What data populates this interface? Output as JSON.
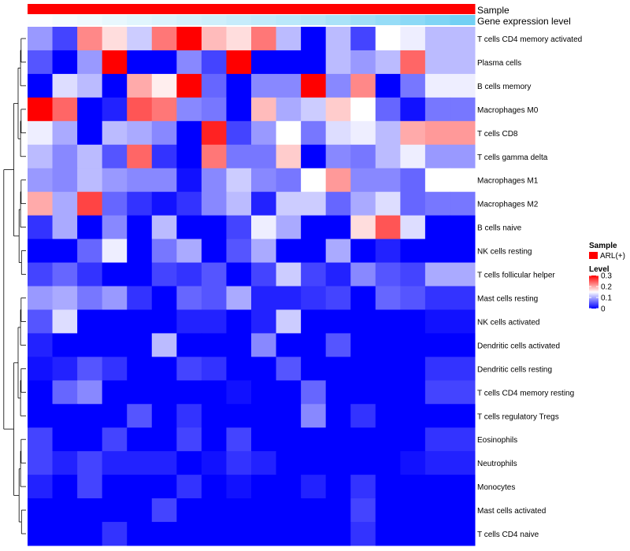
{
  "chart_data": {
    "type": "heatmap",
    "annotation_rows": [
      {
        "label": "Sample",
        "values": [
          "ARL(+)",
          "ARL(+)",
          "ARL(+)",
          "ARL(+)",
          "ARL(+)",
          "ARL(+)",
          "ARL(+)",
          "ARL(+)",
          "ARL(+)",
          "ARL(+)",
          "ARL(+)",
          "ARL(+)",
          "ARL(+)",
          "ARL(+)",
          "ARL(+)",
          "ARL(+)",
          "ARL(+)",
          "ARL(+)"
        ],
        "color": "#FF0000"
      },
      {
        "label": "Gene expression level",
        "values": [
          0.02,
          0.06,
          0.1,
          0.14,
          0.18,
          0.22,
          0.26,
          0.3,
          0.34,
          0.38,
          0.42,
          0.46,
          0.52,
          0.58,
          0.64,
          0.7,
          0.78,
          0.86
        ]
      }
    ],
    "rows": [
      "T cells CD4 memory activated",
      "Plasma cells",
      "B cells memory",
      "Macrophages M0",
      "T cells CD8",
      "T cells gamma delta",
      "Macrophages M1",
      "Macrophages M2",
      "B cells naive",
      "NK cells resting",
      "T cells follicular helper",
      "Mast cells resting",
      "NK cells activated",
      "Dendritic cells activated",
      "Dendritic cells resting",
      "T cells CD4 memory resting",
      "T cells regulatory  Tregs",
      "Eosinophils",
      "Neutrophils",
      "Monocytes",
      "Mast cells activated",
      "T cells CD4 naive"
    ],
    "values": [
      [
        0.09,
        0.04,
        0.22,
        0.17,
        0.12,
        0.23,
        0.3,
        0.19,
        0.17,
        0.23,
        0.11,
        0.0,
        0.11,
        0.04,
        0.15,
        0.14,
        0.11,
        0.11
      ],
      [
        0.05,
        0.0,
        0.09,
        0.3,
        0.0,
        0.0,
        0.08,
        0.04,
        0.3,
        0.0,
        0.0,
        0.0,
        0.11,
        0.09,
        0.11,
        0.24,
        0.11,
        0.11
      ],
      [
        0.0,
        0.13,
        0.11,
        0.0,
        0.2,
        0.16,
        0.3,
        0.06,
        0.0,
        0.08,
        0.08,
        0.3,
        0.08,
        0.22,
        0.0,
        0.07,
        0.14,
        0.14
      ],
      [
        0.3,
        0.24,
        0.0,
        0.02,
        0.25,
        0.23,
        0.08,
        0.07,
        0.0,
        0.19,
        0.1,
        0.12,
        0.18,
        0.15,
        0.06,
        0.01,
        0.07,
        0.07
      ],
      [
        0.14,
        0.1,
        0.0,
        0.11,
        0.1,
        0.08,
        0.0,
        0.28,
        0.04,
        0.09,
        0.15,
        0.07,
        0.13,
        0.14,
        0.11,
        0.2,
        0.21,
        0.21
      ],
      [
        0.11,
        0.08,
        0.11,
        0.05,
        0.24,
        0.03,
        0.0,
        0.23,
        0.07,
        0.07,
        0.18,
        0.0,
        0.08,
        0.07,
        0.11,
        0.14,
        0.09,
        0.09
      ],
      [
        0.09,
        0.08,
        0.11,
        0.09,
        0.08,
        0.08,
        0.01,
        0.08,
        0.12,
        0.08,
        0.07,
        0.15,
        0.21,
        0.08,
        0.08,
        0.06,
        0.15,
        0.15
      ],
      [
        0.2,
        0.1,
        0.26,
        0.06,
        0.03,
        0.01,
        0.03,
        0.08,
        0.11,
        0.02,
        0.12,
        0.12,
        0.06,
        0.1,
        0.13,
        0.06,
        0.07,
        0.07
      ],
      [
        0.03,
        0.1,
        0.0,
        0.08,
        0.0,
        0.11,
        0.0,
        0.0,
        0.04,
        0.14,
        0.1,
        0.0,
        0.0,
        0.17,
        0.25,
        0.13,
        0.0,
        0.0
      ],
      [
        0.0,
        0.0,
        0.06,
        0.14,
        0.0,
        0.07,
        0.1,
        0.0,
        0.05,
        0.1,
        0.0,
        0.0,
        0.1,
        0.0,
        0.02,
        0.0,
        0.0,
        0.0
      ],
      [
        0.04,
        0.06,
        0.03,
        0.0,
        0.0,
        0.04,
        0.03,
        0.05,
        0.0,
        0.04,
        0.12,
        0.04,
        0.02,
        0.08,
        0.05,
        0.04,
        0.1,
        0.1
      ],
      [
        0.09,
        0.1,
        0.07,
        0.09,
        0.03,
        0.0,
        0.06,
        0.05,
        0.1,
        0.02,
        0.02,
        0.03,
        0.04,
        0.0,
        0.06,
        0.05,
        0.03,
        0.03
      ],
      [
        0.05,
        0.13,
        0.0,
        0.0,
        0.0,
        0.0,
        0.02,
        0.02,
        0.0,
        0.02,
        0.12,
        0.0,
        0.0,
        0.0,
        0.0,
        0.0,
        0.01,
        0.01
      ],
      [
        0.02,
        0.0,
        0.0,
        0.0,
        0.0,
        0.11,
        0.0,
        0.0,
        0.0,
        0.08,
        0.0,
        0.0,
        0.05,
        0.0,
        0.0,
        0.0,
        0.0,
        0.0
      ],
      [
        0.01,
        0.02,
        0.05,
        0.03,
        0.0,
        0.0,
        0.04,
        0.03,
        0.0,
        0.0,
        0.05,
        0.0,
        0.0,
        0.0,
        0.0,
        0.0,
        0.03,
        0.03
      ],
      [
        0.0,
        0.06,
        0.08,
        0.0,
        0.0,
        0.0,
        0.0,
        0.0,
        0.01,
        0.0,
        0.0,
        0.06,
        0.0,
        0.0,
        0.0,
        0.0,
        0.04,
        0.04
      ],
      [
        0.0,
        0.0,
        0.0,
        0.0,
        0.05,
        0.0,
        0.03,
        0.0,
        0.0,
        0.0,
        0.0,
        0.08,
        0.0,
        0.03,
        0.0,
        0.0,
        0.0,
        0.0
      ],
      [
        0.04,
        0.0,
        0.0,
        0.04,
        0.0,
        0.0,
        0.04,
        0.0,
        0.04,
        0.0,
        0.0,
        0.0,
        0.0,
        0.0,
        0.0,
        0.0,
        0.03,
        0.03
      ],
      [
        0.04,
        0.02,
        0.04,
        0.02,
        0.02,
        0.02,
        0.0,
        0.01,
        0.03,
        0.02,
        0.0,
        0.0,
        0.0,
        0.0,
        0.0,
        0.01,
        0.02,
        0.02
      ],
      [
        0.02,
        0.0,
        0.04,
        0.0,
        0.0,
        0.0,
        0.03,
        0.0,
        0.01,
        0.0,
        0.0,
        0.02,
        0.0,
        0.03,
        0.0,
        0.0,
        0.0,
        0.0
      ],
      [
        0.0,
        0.0,
        0.0,
        0.0,
        0.0,
        0.04,
        0.0,
        0.0,
        0.0,
        0.0,
        0.0,
        0.0,
        0.0,
        0.04,
        0.0,
        0.0,
        0.0,
        0.0
      ],
      [
        0.0,
        0.0,
        0.0,
        0.03,
        0.0,
        0.0,
        0.0,
        0.0,
        0.0,
        0.0,
        0.0,
        0.0,
        0.0,
        0.03,
        0.0,
        0.0,
        0.0,
        0.0
      ]
    ],
    "scale": {
      "min": 0,
      "max": 0.3,
      "low": "#0000FF",
      "mid": "#FFFFFF",
      "high": "#FF0000",
      "mid_value": 0.15
    },
    "legend": {
      "sample_title": "Sample",
      "sample_entry": "ARL(+)",
      "sample_color": "#FF0000",
      "level_title": "Level",
      "ticks": [
        "0.3",
        "0.2",
        "0.1",
        "0"
      ],
      "tick_values": [
        0.3,
        0.2,
        0.1,
        0
      ],
      "placement": "right"
    },
    "gene_scale": {
      "low": "#FFFFFF",
      "high": "#5BC8F2"
    },
    "dendrogram": "left"
  }
}
